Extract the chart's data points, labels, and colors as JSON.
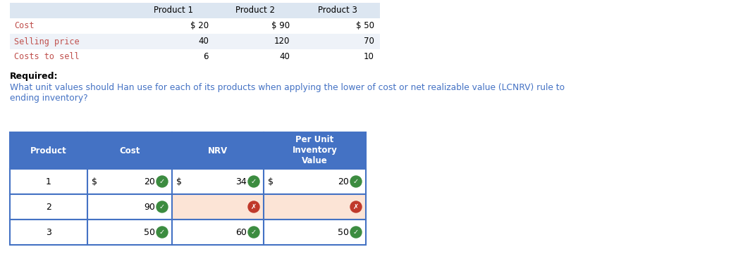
{
  "bg_color": "#ffffff",
  "top_table": {
    "headers": [
      "",
      "Product 1",
      "Product 2",
      "Product 3"
    ],
    "rows": [
      [
        "Cost",
        "$ 20",
        "$ 90",
        "$ 50"
      ],
      [
        "Selling price",
        "40",
        "120",
        "70"
      ],
      [
        "Costs to sell",
        "6",
        "40",
        "10"
      ]
    ],
    "header_bg": "#dce6f1",
    "row_bgs": [
      "#ffffff",
      "#eef2f8",
      "#ffffff"
    ],
    "label_color": "#c0504d",
    "value_color": "#000000",
    "header_text_color": "#000000"
  },
  "required_text": "Required:",
  "question_text": "What unit values should Han use for each of its products when applying the lower of cost or net realizable value (LCNRV) rule to\nending inventory?",
  "question_color": "#4472c4",
  "required_color": "#000000",
  "bottom_table": {
    "col_headers": [
      "Product",
      "Cost",
      "NRV",
      "Per Unit\nInventory\nValue"
    ],
    "header_bg": "#4472c4",
    "header_text_color": "#ffffff",
    "border_color": "#4472c4",
    "rows": [
      {
        "product": "1",
        "cost_prefix": "$",
        "cost_val": "20",
        "cost_check": "green",
        "nrv_prefix": "$",
        "nrv_val": "34",
        "nrv_check": "green",
        "inv_prefix": "$",
        "inv_val": "20",
        "inv_check": "green",
        "nrv_bg": "#ffffff",
        "inv_bg": "#ffffff"
      },
      {
        "product": "2",
        "cost_prefix": "",
        "cost_val": "90",
        "cost_check": "green",
        "nrv_prefix": "",
        "nrv_val": "",
        "nrv_check": "red",
        "inv_prefix": "",
        "inv_val": "",
        "inv_check": "red",
        "nrv_bg": "#fce4d6",
        "inv_bg": "#fce4d6"
      },
      {
        "product": "3",
        "cost_prefix": "",
        "cost_val": "50",
        "cost_check": "green",
        "nrv_prefix": "",
        "nrv_val": "60",
        "nrv_check": "green",
        "inv_prefix": "",
        "inv_val": "50",
        "inv_check": "green",
        "nrv_bg": "#ffffff",
        "inv_bg": "#ffffff"
      }
    ]
  }
}
